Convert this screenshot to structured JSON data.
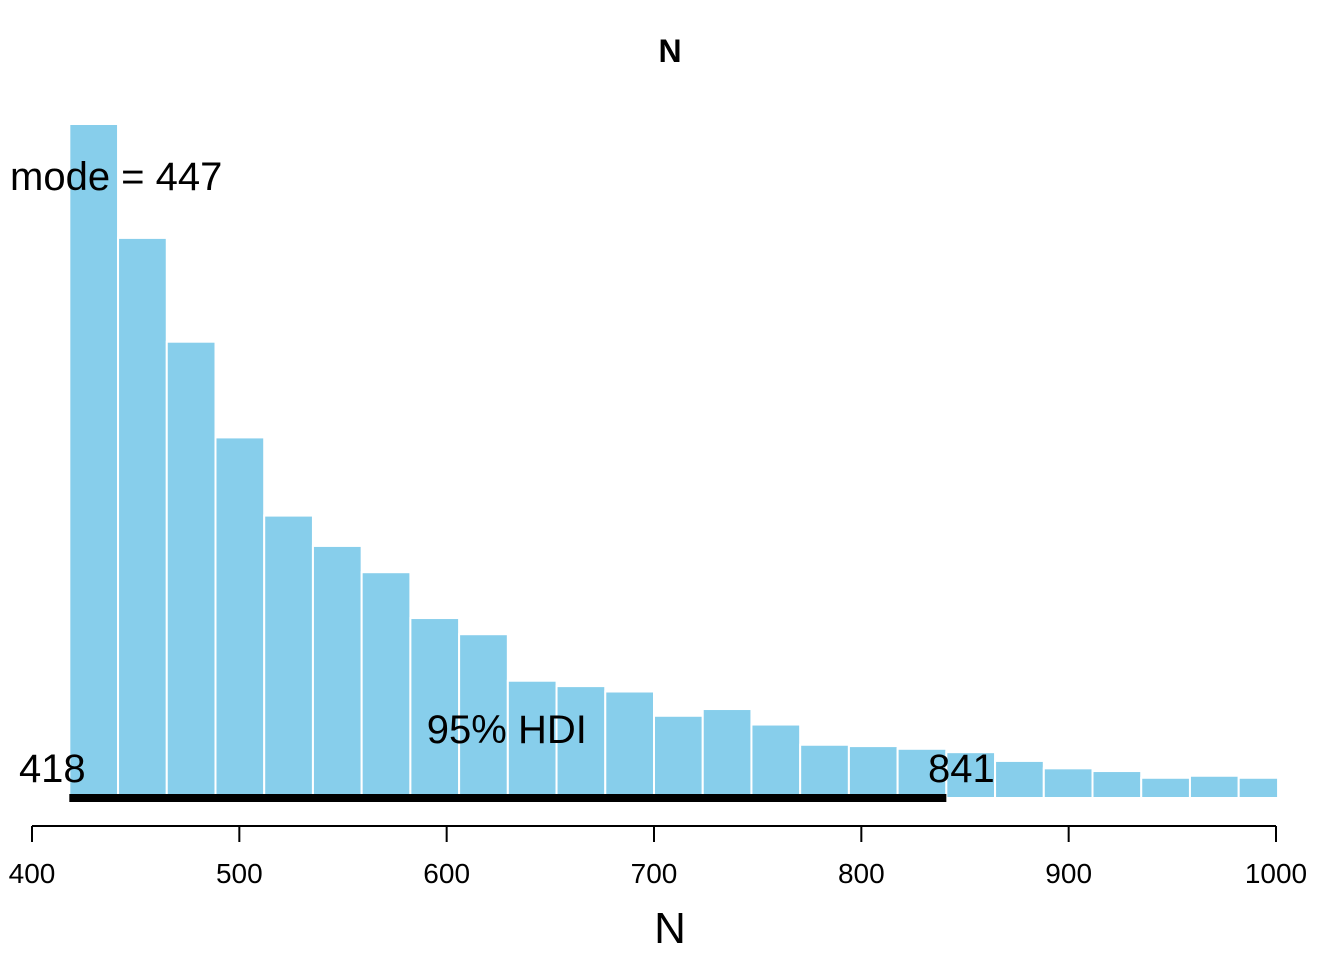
{
  "chart_data": {
    "type": "bar",
    "title": "N",
    "xlabel": "N",
    "ylabel": "",
    "xlim": [
      400,
      1000
    ],
    "bin_edges": [
      418,
      441.5,
      465,
      488.5,
      512,
      535.5,
      559,
      582.5,
      606,
      629.5,
      653,
      676.5,
      700,
      723.5,
      747,
      770.5,
      794,
      817.5,
      841,
      864.5,
      888,
      911.5,
      935,
      958.5,
      982,
      1001
    ],
    "values": [
      100,
      83.1,
      67.7,
      53.5,
      41.9,
      37.4,
      33.5,
      26.7,
      24.3,
      17.4,
      16.6,
      15.8,
      12.2,
      13.2,
      10.9,
      7.9,
      7.7,
      7.3,
      6.8,
      5.5,
      4.4,
      4.0,
      3.0,
      3.3,
      3.0
    ],
    "ticks": [
      400,
      500,
      600,
      700,
      800,
      900,
      1000
    ],
    "tick_labels": [
      "400",
      "500",
      "600",
      "700",
      "800",
      "900",
      "1000"
    ],
    "bar_color": "#87CEEB",
    "bar_edge_color": "#ffffff",
    "mode": {
      "value": 447,
      "label": "mode",
      "operator": "="
    },
    "hdi": {
      "label": "95% HDI",
      "low": 418,
      "high": 841,
      "low_label": "418",
      "high_label": "841",
      "color": "#000000"
    }
  }
}
